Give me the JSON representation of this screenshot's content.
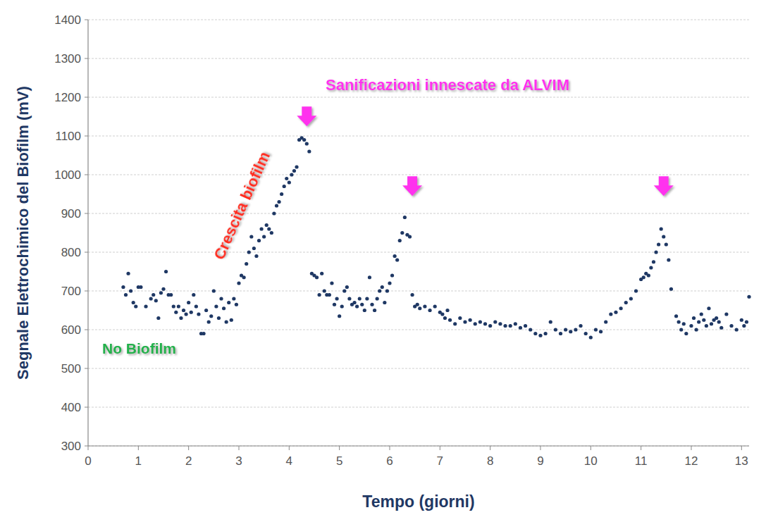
{
  "chart_data": {
    "type": "scatter",
    "x_label": "Tempo (giorni)",
    "y_label": "Segnale Elettrochimico del Biofilm (mV)",
    "xlim": [
      0,
      13.15
    ],
    "ylim": [
      300,
      1400
    ],
    "xticks": [
      0,
      1,
      2,
      3,
      4,
      5,
      6,
      7,
      8,
      9,
      10,
      11,
      12,
      13
    ],
    "yticks": [
      300,
      400,
      500,
      600,
      700,
      800,
      900,
      1000,
      1100,
      1200,
      1300,
      1400
    ],
    "grid": true,
    "x": [
      0.7,
      0.75,
      0.8,
      0.85,
      0.9,
      0.95,
      1.0,
      1.05,
      1.15,
      1.25,
      1.3,
      1.35,
      1.4,
      1.45,
      1.5,
      1.55,
      1.6,
      1.65,
      1.7,
      1.75,
      1.8,
      1.85,
      1.9,
      1.95,
      2.0,
      2.05,
      2.1,
      2.15,
      2.2,
      2.25,
      2.3,
      2.35,
      2.4,
      2.45,
      2.5,
      2.55,
      2.6,
      2.65,
      2.7,
      2.75,
      2.8,
      2.85,
      2.9,
      2.95,
      3.0,
      3.05,
      3.1,
      3.15,
      3.2,
      3.25,
      3.3,
      3.35,
      3.4,
      3.45,
      3.5,
      3.55,
      3.6,
      3.65,
      3.7,
      3.75,
      3.8,
      3.85,
      3.9,
      3.95,
      4.0,
      4.05,
      4.1,
      4.15,
      4.2,
      4.25,
      4.3,
      4.35,
      4.4,
      4.45,
      4.5,
      4.55,
      4.6,
      4.65,
      4.7,
      4.75,
      4.8,
      4.85,
      4.9,
      4.95,
      5.0,
      5.05,
      5.1,
      5.15,
      5.2,
      5.25,
      5.3,
      5.35,
      5.4,
      5.45,
      5.5,
      5.55,
      5.6,
      5.65,
      5.7,
      5.75,
      5.8,
      5.85,
      5.9,
      5.95,
      6.0,
      6.05,
      6.1,
      6.15,
      6.2,
      6.25,
      6.3,
      6.35,
      6.4,
      6.45,
      6.5,
      6.55,
      6.6,
      6.7,
      6.8,
      6.9,
      7.0,
      7.05,
      7.1,
      7.15,
      7.2,
      7.3,
      7.4,
      7.5,
      7.6,
      7.7,
      7.8,
      7.9,
      8.0,
      8.1,
      8.2,
      8.3,
      8.4,
      8.5,
      8.6,
      8.7,
      8.8,
      8.9,
      9.0,
      9.1,
      9.2,
      9.3,
      9.4,
      9.5,
      9.6,
      9.7,
      9.8,
      9.9,
      10.0,
      10.1,
      10.2,
      10.3,
      10.4,
      10.5,
      10.6,
      10.7,
      10.8,
      10.9,
      11.0,
      11.05,
      11.1,
      11.15,
      11.2,
      11.25,
      11.3,
      11.35,
      11.4,
      11.45,
      11.5,
      11.55,
      11.6,
      11.7,
      11.75,
      11.8,
      11.85,
      11.9,
      12.0,
      12.05,
      12.1,
      12.15,
      12.2,
      12.25,
      12.3,
      12.35,
      12.4,
      12.45,
      12.5,
      12.55,
      12.6,
      12.7,
      12.8,
      12.9,
      13.0,
      13.05,
      13.1,
      13.15
    ],
    "series": [
      {
        "color": "#1f3864",
        "marker": "circle",
        "values": [
          710,
          690,
          745,
          700,
          670,
          660,
          710,
          710,
          660,
          680,
          690,
          675,
          630,
          695,
          705,
          750,
          690,
          690,
          660,
          645,
          660,
          630,
          650,
          640,
          670,
          645,
          690,
          660,
          640,
          590,
          590,
          650,
          620,
          635,
          700,
          660,
          630,
          680,
          655,
          620,
          670,
          625,
          680,
          665,
          720,
          740,
          735,
          770,
          800,
          840,
          810,
          790,
          830,
          860,
          840,
          870,
          860,
          850,
          900,
          920,
          930,
          950,
          970,
          990,
          980,
          1000,
          1010,
          1020,
          1090,
          1095,
          1090,
          1080,
          1060,
          745,
          740,
          735,
          690,
          745,
          700,
          690,
          690,
          720,
          665,
          680,
          635,
          660,
          700,
          710,
          680,
          665,
          670,
          660,
          680,
          665,
          650,
          680,
          735,
          665,
          650,
          680,
          700,
          710,
          670,
          700,
          720,
          740,
          790,
          780,
          830,
          850,
          890,
          845,
          840,
          690,
          660,
          665,
          655,
          660,
          650,
          660,
          645,
          640,
          630,
          650,
          625,
          615,
          630,
          620,
          625,
          615,
          620,
          615,
          610,
          620,
          615,
          610,
          610,
          615,
          605,
          610,
          600,
          590,
          585,
          590,
          620,
          600,
          590,
          600,
          595,
          600,
          610,
          590,
          580,
          600,
          595,
          620,
          640,
          645,
          655,
          670,
          680,
          700,
          730,
          735,
          745,
          740,
          760,
          775,
          800,
          820,
          860,
          840,
          820,
          780,
          705,
          635,
          620,
          600,
          615,
          590,
          610,
          630,
          600,
          620,
          640,
          625,
          610,
          655,
          615,
          625,
          630,
          620,
          605,
          640,
          610,
          600,
          625,
          610,
          620,
          685
        ]
      }
    ],
    "sanitizations": {
      "x": [
        4.35,
        6.45,
        11.45
      ],
      "y": [
        1125,
        945,
        945
      ],
      "color": "#ff33ee"
    },
    "annotations": [
      {
        "text": "Sanificazioni innescate da ALVIM",
        "color": "#ff33ee"
      },
      {
        "text": "Crescita biofilm",
        "color": "#ff2a1a"
      },
      {
        "text": "No Biofilm",
        "color": "#22b14c"
      }
    ]
  }
}
